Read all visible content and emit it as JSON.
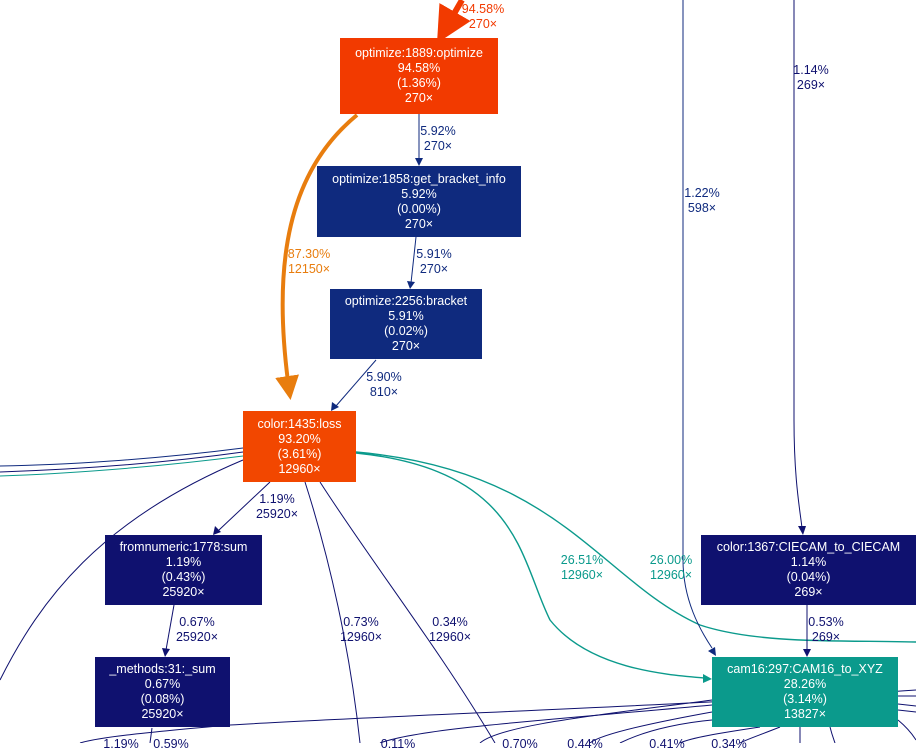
{
  "colors": {
    "hot": "#f23a00",
    "hot2": "#f24700",
    "warm": "#e87d0e",
    "navy": "#0f2a7e",
    "indigo": "#0f116f",
    "teal": "#0b9a8c"
  },
  "nodes": [
    {
      "id": "optimize_1889",
      "lines": [
        "optimize:1889:optimize",
        "94.58%",
        "(1.36%)",
        "270×"
      ]
    },
    {
      "id": "optimize_1858",
      "lines": [
        "optimize:1858:get_bracket_info",
        "5.92%",
        "(0.00%)",
        "270×"
      ]
    },
    {
      "id": "optimize_2256",
      "lines": [
        "optimize:2256:bracket",
        "5.91%",
        "(0.02%)",
        "270×"
      ]
    },
    {
      "id": "color_1435",
      "lines": [
        "color:1435:loss",
        "93.20%",
        "(3.61%)",
        "12960×"
      ]
    },
    {
      "id": "fromnumeric_1778",
      "lines": [
        "fromnumeric:1778:sum",
        "1.19%",
        "(0.43%)",
        "25920×"
      ]
    },
    {
      "id": "methods_31",
      "lines": [
        "_methods:31:_sum",
        "0.67%",
        "(0.08%)",
        "25920×"
      ]
    },
    {
      "id": "color_1367",
      "lines": [
        "color:1367:CIECAM_to_CIECAM",
        "1.14%",
        "(0.04%)",
        "269×"
      ]
    },
    {
      "id": "cam16_297",
      "lines": [
        "cam16:297:CAM16_to_XYZ",
        "28.26%",
        "(3.14%)",
        "13827×"
      ]
    }
  ],
  "edge_labels": [
    {
      "id": "in_optimize",
      "pct": "94.58%",
      "calls": "270×"
    },
    {
      "id": "opt_to_bracketinfo",
      "pct": "5.92%",
      "calls": "270×"
    },
    {
      "id": "bracketinfo_to_bracket",
      "pct": "5.91%",
      "calls": "270×"
    },
    {
      "id": "bracket_to_loss",
      "pct": "5.90%",
      "calls": "810×"
    },
    {
      "id": "opt_to_loss",
      "pct": "87.30%",
      "calls": "12150×"
    },
    {
      "id": "loss_to_sum",
      "pct": "1.19%",
      "calls": "25920×"
    },
    {
      "id": "sum_to_methods",
      "pct": "0.67%",
      "calls": "25920×"
    },
    {
      "id": "loss_offA",
      "pct": "0.73%",
      "calls": "12960×"
    },
    {
      "id": "loss_offB",
      "pct": "0.34%",
      "calls": "12960×"
    },
    {
      "id": "loss_to_cam16_a",
      "pct": "26.51%",
      "calls": "12960×"
    },
    {
      "id": "loss_to_cam16_b",
      "pct": "26.00%",
      "calls": "12960×"
    },
    {
      "id": "in_cam16_right",
      "pct": "1.22%",
      "calls": "598×"
    },
    {
      "id": "in_ciecam",
      "pct": "1.14%",
      "calls": "269×"
    },
    {
      "id": "ciecam_to_cam16",
      "pct": "0.53%",
      "calls": "269×"
    }
  ],
  "partial_labels": [
    "1.19%",
    "0.59%",
    "0.11%",
    "0.70%",
    "0.44%",
    "0.41%",
    "0.34%"
  ]
}
